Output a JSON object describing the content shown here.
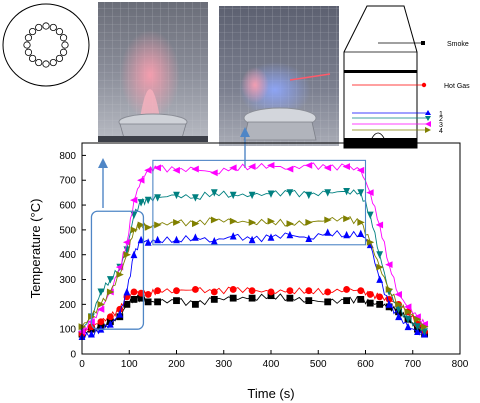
{
  "chart_data": {
    "type": "line",
    "xlabel": "Time (s)",
    "ylabel": "Temperature (°C)",
    "xlim": [
      0,
      800
    ],
    "ylim": [
      0,
      850
    ],
    "xticks": [
      0,
      100,
      200,
      300,
      400,
      500,
      600,
      700,
      800
    ],
    "yticks": [
      0,
      100,
      200,
      300,
      400,
      500,
      600,
      700,
      800
    ],
    "grid": false,
    "x": [
      0,
      20,
      40,
      60,
      80,
      95,
      110,
      125,
      140,
      160,
      200,
      240,
      280,
      320,
      360,
      400,
      440,
      480,
      520,
      560,
      590,
      610,
      630,
      650,
      670,
      690,
      710,
      725
    ],
    "series": [
      {
        "name": "Smoke",
        "color": "#000000",
        "marker": "square",
        "values": [
          80,
          100,
          110,
          130,
          150,
          200,
          220,
          225,
          210,
          210,
          215,
          200,
          220,
          225,
          225,
          235,
          225,
          215,
          210,
          215,
          220,
          205,
          200,
          190,
          170,
          140,
          100,
          80
        ]
      },
      {
        "name": "Hot Gas",
        "color": "#ff0000",
        "marker": "circle",
        "values": [
          80,
          110,
          130,
          150,
          180,
          230,
          250,
          245,
          240,
          255,
          255,
          260,
          250,
          260,
          255,
          250,
          255,
          255,
          250,
          260,
          255,
          240,
          230,
          220,
          200,
          170,
          120,
          90
        ]
      },
      {
        "name": "1",
        "color": "#0000ff",
        "marker": "triangle-up",
        "values": [
          70,
          80,
          100,
          120,
          160,
          250,
          400,
          460,
          450,
          460,
          460,
          470,
          455,
          475,
          460,
          470,
          480,
          465,
          490,
          480,
          485,
          440,
          300,
          200,
          150,
          110,
          90,
          80
        ]
      },
      {
        "name": "2",
        "color": "#008080",
        "marker": "triangle-down",
        "values": [
          100,
          150,
          250,
          300,
          350,
          420,
          560,
          610,
          620,
          630,
          640,
          630,
          650,
          640,
          640,
          645,
          650,
          640,
          650,
          655,
          650,
          560,
          400,
          250,
          180,
          140,
          110,
          90
        ]
      },
      {
        "name": "3",
        "color": "#ff00ff",
        "marker": "triangle-left",
        "values": [
          90,
          130,
          180,
          250,
          350,
          450,
          620,
          700,
          740,
          750,
          740,
          745,
          730,
          750,
          755,
          760,
          745,
          760,
          750,
          755,
          740,
          650,
          520,
          360,
          240,
          190,
          150,
          120
        ]
      },
      {
        "name": "4",
        "color": "#808000",
        "marker": "triangle-right",
        "values": [
          110,
          150,
          200,
          250,
          320,
          400,
          500,
          520,
          510,
          520,
          530,
          525,
          540,
          535,
          530,
          535,
          525,
          530,
          540,
          545,
          530,
          450,
          350,
          260,
          200,
          170,
          140,
          110
        ]
      }
    ]
  },
  "schematic": {
    "labels": [
      "Smoke",
      "Hot Gas",
      "1",
      "2",
      "3",
      "4"
    ]
  },
  "photos": {
    "left_label": "flame-photo-left",
    "right_label": "flame-photo-right"
  }
}
